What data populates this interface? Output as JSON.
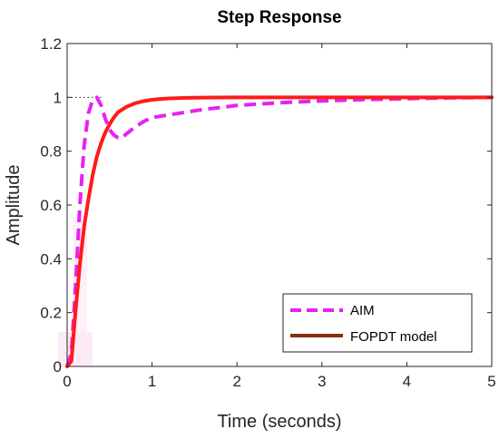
{
  "chart_data": {
    "type": "line",
    "title": "Step Response",
    "xlabel": "Time (seconds)",
    "ylabel": "Amplitude",
    "xlim": [
      0,
      5
    ],
    "ylim": [
      0,
      1.2
    ],
    "xticks": [
      0,
      1,
      2,
      3,
      4,
      5
    ],
    "xtick_labels": [
      "0",
      "1",
      "2",
      "3",
      "4",
      "5"
    ],
    "yticks": [
      0,
      0.2,
      0.4,
      0.6,
      0.8,
      1,
      1.2
    ],
    "ytick_labels": [
      "0",
      "0.2",
      "0.4",
      "0.6",
      "0.8",
      "1",
      "1.2"
    ],
    "grid": false,
    "legend": "bottom-right",
    "reference_line": {
      "y": 1,
      "x_end": 0.4
    },
    "series": [
      {
        "name": "AIM",
        "style": "dashed",
        "color": "#e622f0",
        "x": [
          0,
          0.05,
          0.1,
          0.15,
          0.2,
          0.25,
          0.3,
          0.35,
          0.4,
          0.45,
          0.5,
          0.55,
          0.6,
          0.65,
          0.7,
          0.8,
          0.9,
          1.0,
          1.2,
          1.4,
          1.6,
          1.8,
          2.0,
          2.5,
          3.0,
          3.5,
          4.0,
          4.5,
          5.0
        ],
        "y": [
          0,
          0.05,
          0.3,
          0.6,
          0.82,
          0.94,
          0.99,
          1.0,
          0.97,
          0.92,
          0.88,
          0.86,
          0.85,
          0.85,
          0.865,
          0.89,
          0.91,
          0.925,
          0.935,
          0.945,
          0.955,
          0.962,
          0.97,
          0.98,
          0.987,
          0.992,
          0.995,
          0.998,
          1.0
        ]
      },
      {
        "name": "FOPDT model",
        "style": "solid",
        "color": "#ff1a1a",
        "legend_color": "#8b2d0f",
        "x": [
          0,
          0.05,
          0.1,
          0.15,
          0.2,
          0.25,
          0.3,
          0.35,
          0.4,
          0.45,
          0.5,
          0.55,
          0.6,
          0.7,
          0.8,
          0.9,
          1.0,
          1.1,
          1.2,
          1.4,
          1.6,
          2.0,
          2.5,
          3.0,
          4.0,
          5.0
        ],
        "y": [
          0,
          0.02,
          0.21,
          0.38,
          0.52,
          0.62,
          0.71,
          0.78,
          0.83,
          0.87,
          0.9,
          0.925,
          0.945,
          0.965,
          0.978,
          0.986,
          0.991,
          0.994,
          0.996,
          0.998,
          0.999,
          1.0,
          1.0,
          1.0,
          1.0,
          1.0
        ]
      }
    ]
  }
}
